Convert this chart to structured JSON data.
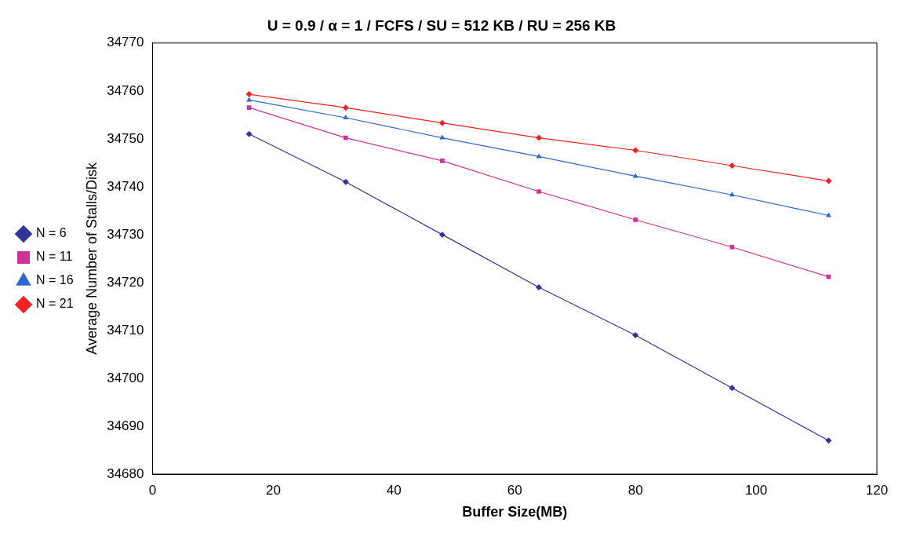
{
  "chart_data": {
    "type": "line",
    "title": "U = 0.9 / α = 1 / FCFS / SU = 512 KB / RU = 256 KB",
    "xlabel": "Buffer Size(MB)",
    "ylabel": "Average Number of Stalls/Disk",
    "x": [
      16,
      32,
      48,
      64,
      80,
      96,
      112
    ],
    "xlim": [
      0,
      120
    ],
    "xticks": [
      0,
      20,
      40,
      60,
      80,
      100,
      120
    ],
    "ylim": [
      34680,
      34770
    ],
    "yticks": [
      34680,
      34690,
      34700,
      34710,
      34720,
      34730,
      34740,
      34750,
      34760,
      34770
    ],
    "grid": false,
    "legend": "left",
    "line_style": "solid",
    "series": [
      {
        "name": "N = 6",
        "color": "#333399",
        "marker": "diamond",
        "values": [
          34751,
          34741,
          34730,
          34719,
          34709,
          34698,
          34687
        ]
      },
      {
        "name": "N = 11",
        "color": "#cc3399",
        "marker": "square",
        "values": [
          34756.5,
          34750.2,
          34745.4,
          34739,
          34733.1,
          34727.4,
          34721.2
        ]
      },
      {
        "name": "N = 16",
        "color": "#3366cc",
        "marker": "triangle",
        "values": [
          34758.1,
          34754.4,
          34750.2,
          34746.3,
          34742.2,
          34738.3,
          34734
        ]
      },
      {
        "name": "N = 21",
        "color": "#ee2222",
        "marker": "diamond",
        "values": [
          34759.3,
          34756.5,
          34753.3,
          34750.2,
          34747.6,
          34744.4,
          34741.2
        ]
      }
    ]
  }
}
